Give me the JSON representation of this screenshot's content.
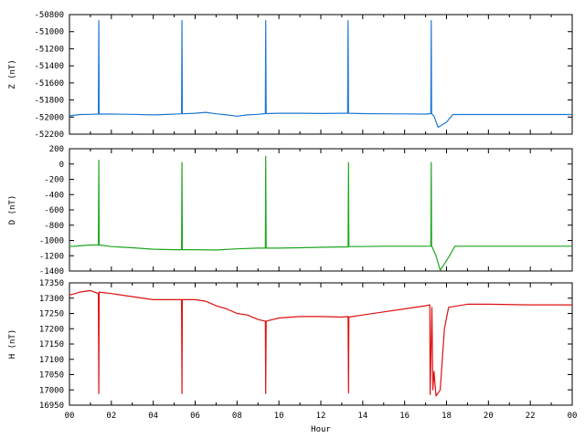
{
  "chart_data": [
    {
      "type": "line",
      "ylabel": "Z (nT)",
      "ylim": [
        -52200,
        -50800
      ],
      "yticks": [
        -50800,
        -51000,
        -51200,
        -51400,
        -51600,
        -51800,
        -52000,
        -52200
      ],
      "xlim": [
        0,
        24
      ],
      "color": "#1e78d2",
      "series": [
        {
          "points": [
            [
              0,
              -51985
            ],
            [
              0.5,
              -51970
            ],
            [
              1.0,
              -51968
            ],
            [
              1.38,
              -51965
            ],
            [
              1.4,
              -50870
            ],
            [
              1.42,
              -51965
            ],
            [
              2,
              -51965
            ],
            [
              3,
              -51968
            ],
            [
              4,
              -51975
            ],
            [
              4.5,
              -51970
            ],
            [
              5.35,
              -51962
            ],
            [
              5.37,
              -50870
            ],
            [
              5.39,
              -51962
            ],
            [
              6,
              -51955
            ],
            [
              6.5,
              -51945
            ],
            [
              7,
              -51962
            ],
            [
              7.5,
              -51975
            ],
            [
              8,
              -51990
            ],
            [
              8.5,
              -51975
            ],
            [
              9,
              -51968
            ],
            [
              9.35,
              -51960
            ],
            [
              9.37,
              -50870
            ],
            [
              9.39,
              -51960
            ],
            [
              10,
              -51955
            ],
            [
              11,
              -51955
            ],
            [
              12,
              -51958
            ],
            [
              13,
              -51955
            ],
            [
              13.28,
              -51955
            ],
            [
              13.3,
              -50870
            ],
            [
              13.32,
              -51955
            ],
            [
              14,
              -51960
            ],
            [
              15,
              -51962
            ],
            [
              16,
              -51963
            ],
            [
              17,
              -51965
            ],
            [
              17.25,
              -51960
            ],
            [
              17.27,
              -50870
            ],
            [
              17.29,
              -51960
            ],
            [
              17.4,
              -51990
            ],
            [
              17.6,
              -52120
            ],
            [
              18,
              -52060
            ],
            [
              18.3,
              -51970
            ],
            [
              20,
              -51970
            ],
            [
              22,
              -51970
            ],
            [
              24,
              -51970
            ]
          ]
        }
      ]
    },
    {
      "type": "line",
      "ylabel": "D (nT)",
      "ylim": [
        -1400,
        200
      ],
      "yticks": [
        200,
        0,
        -200,
        -400,
        -600,
        -800,
        -1000,
        -1200,
        -1400
      ],
      "xlim": [
        0,
        24
      ],
      "color": "#1fa61f",
      "series": [
        {
          "points": [
            [
              0,
              -1080
            ],
            [
              0.5,
              -1070
            ],
            [
              1.0,
              -1060
            ],
            [
              1.38,
              -1060
            ],
            [
              1.4,
              50
            ],
            [
              1.42,
              -1060
            ],
            [
              2,
              -1080
            ],
            [
              3,
              -1095
            ],
            [
              4,
              -1115
            ],
            [
              5,
              -1120
            ],
            [
              5.35,
              -1120
            ],
            [
              5.37,
              20
            ],
            [
              5.39,
              -1120
            ],
            [
              6,
              -1120
            ],
            [
              7,
              -1125
            ],
            [
              8,
              -1110
            ],
            [
              9,
              -1100
            ],
            [
              9.35,
              -1100
            ],
            [
              9.37,
              100
            ],
            [
              9.39,
              -1100
            ],
            [
              10,
              -1100
            ],
            [
              11,
              -1095
            ],
            [
              12,
              -1090
            ],
            [
              13,
              -1085
            ],
            [
              13.3,
              -1085
            ],
            [
              13.32,
              20
            ],
            [
              13.34,
              -1080
            ],
            [
              14,
              -1080
            ],
            [
              15,
              -1075
            ],
            [
              16,
              -1075
            ],
            [
              17,
              -1075
            ],
            [
              17.25,
              -1075
            ],
            [
              17.27,
              20
            ],
            [
              17.29,
              -1070
            ],
            [
              17.5,
              -1200
            ],
            [
              17.7,
              -1390
            ],
            [
              18.1,
              -1220
            ],
            [
              18.4,
              -1075
            ],
            [
              20,
              -1075
            ],
            [
              22,
              -1075
            ],
            [
              24,
              -1075
            ]
          ]
        }
      ]
    },
    {
      "type": "line",
      "ylabel": "H (nT)",
      "xlabel": "Hour",
      "ylim": [
        16950,
        17350
      ],
      "yticks": [
        17350,
        17300,
        17250,
        17200,
        17150,
        17100,
        17050,
        17000,
        16950
      ],
      "xlim": [
        0,
        24
      ],
      "xticks": [
        "00",
        "02",
        "04",
        "06",
        "08",
        "10",
        "12",
        "14",
        "16",
        "18",
        "20",
        "22",
        "00"
      ],
      "color": "#e01010",
      "series": [
        {
          "points": [
            [
              0,
              17310
            ],
            [
              0.5,
              17320
            ],
            [
              1.0,
              17325
            ],
            [
              1.38,
              17315
            ],
            [
              1.4,
              16988
            ],
            [
              1.42,
              17320
            ],
            [
              2,
              17315
            ],
            [
              3,
              17305
            ],
            [
              4,
              17295
            ],
            [
              5,
              17295
            ],
            [
              5.35,
              17295
            ],
            [
              5.37,
              16988
            ],
            [
              5.39,
              17295
            ],
            [
              6,
              17295
            ],
            [
              6.5,
              17290
            ],
            [
              7,
              17275
            ],
            [
              7.5,
              17265
            ],
            [
              8,
              17250
            ],
            [
              8.5,
              17245
            ],
            [
              9,
              17230
            ],
            [
              9.35,
              17225
            ],
            [
              9.37,
              16988
            ],
            [
              9.39,
              17225
            ],
            [
              10,
              17235
            ],
            [
              11,
              17240
            ],
            [
              12,
              17240
            ],
            [
              13,
              17238
            ],
            [
              13.3,
              17240
            ],
            [
              13.32,
              16990
            ],
            [
              13.34,
              17238
            ],
            [
              14,
              17245
            ],
            [
              15,
              17255
            ],
            [
              16,
              17265
            ],
            [
              17,
              17275
            ],
            [
              17.2,
              17278
            ],
            [
              17.22,
              16985
            ],
            [
              17.3,
              17270
            ],
            [
              17.35,
              17000
            ],
            [
              17.4,
              17060
            ],
            [
              17.5,
              16980
            ],
            [
              17.7,
              17000
            ],
            [
              17.9,
              17200
            ],
            [
              18.1,
              17270
            ],
            [
              19,
              17280
            ],
            [
              20,
              17280
            ],
            [
              22,
              17278
            ],
            [
              24,
              17278
            ]
          ]
        }
      ]
    }
  ]
}
